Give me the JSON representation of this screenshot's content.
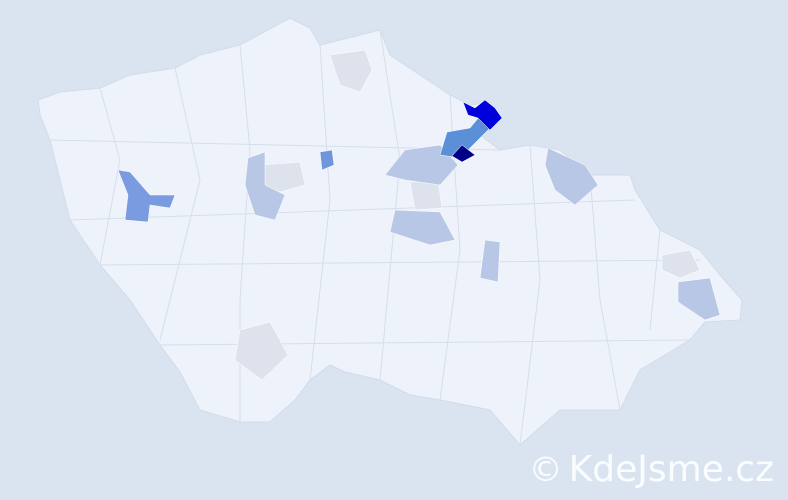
{
  "map": {
    "background_color": "#dae4f1",
    "base_fill": "#eef2fa",
    "border_color": "#d2dbea",
    "regions": [
      {
        "name": "region-highest",
        "color": "#000088"
      },
      {
        "name": "region-very-high",
        "color": "#0000dd"
      },
      {
        "name": "region-high",
        "color": "#5b8fd8"
      },
      {
        "name": "region-medium-west",
        "color": "#7b9be0"
      },
      {
        "name": "region-medium-small",
        "color": "#6f96dc"
      },
      {
        "name": "region-low",
        "color": "#b9c7e6"
      },
      {
        "name": "region-very-low",
        "color": "#dde2ec"
      }
    ]
  },
  "watermark": {
    "copyright": "©",
    "text": "KdeJsme.cz"
  }
}
